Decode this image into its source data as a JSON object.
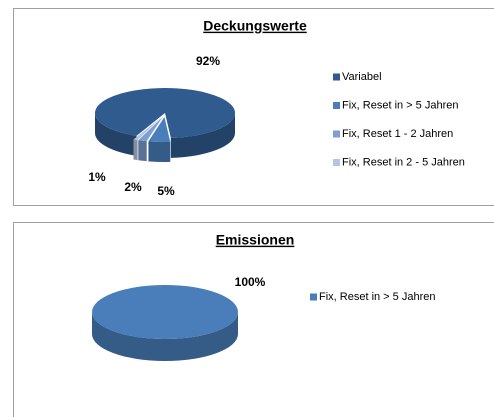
{
  "chart_data": [
    {
      "type": "pie",
      "title": "Deckungswerte",
      "categories": [
        "Variabel",
        "Fix, Reset in > 5 Jahren",
        "Fix, Reset 1 - 2 Jahren",
        "Fix, Reset  in 2 - 5 Jahren"
      ],
      "values": [
        92,
        5,
        2,
        1
      ],
      "value_labels": [
        "92%",
        "5%",
        "2%",
        "1%"
      ],
      "colors": [
        "#2f5b8f",
        "#4a7ebb",
        "#7f9fd0",
        "#b4c5e4"
      ],
      "legend": "right"
    },
    {
      "type": "pie",
      "title": "Emissionen",
      "categories": [
        "Fix, Reset in > 5 Jahren"
      ],
      "values": [
        100
      ],
      "value_labels": [
        "100%"
      ],
      "colors": [
        "#4a7ebb"
      ],
      "legend": "right"
    }
  ]
}
